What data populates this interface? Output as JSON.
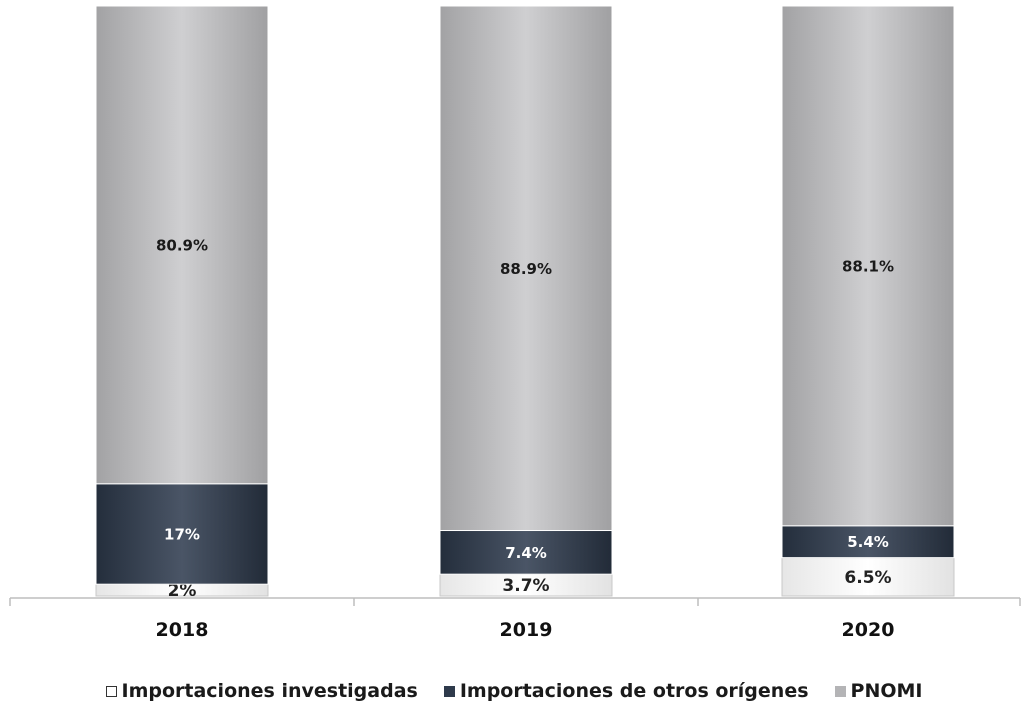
{
  "chart_data": {
    "type": "bar",
    "stacked": true,
    "categories": [
      "2018",
      "2019",
      "2020"
    ],
    "series": [
      {
        "name": "Importaciones investigadas",
        "values": [
          2,
          3.7,
          6.5
        ],
        "labels": [
          "2%",
          "3.7%",
          "6.5%"
        ],
        "color": "#f2f2f2"
      },
      {
        "name": "Importaciones de otros orígenes",
        "values": [
          17,
          7.4,
          5.4
        ],
        "labels": [
          "17%",
          "7.4%",
          "5.4%"
        ],
        "color": "#2e3a4b"
      },
      {
        "name": "PNOMI",
        "values": [
          80.9,
          88.9,
          88.1
        ],
        "labels": [
          "80.9%",
          "88.9%",
          "88.1%"
        ],
        "color": "#b4b4b6"
      }
    ],
    "ylim": [
      0,
      100
    ],
    "legend_position": "bottom"
  }
}
